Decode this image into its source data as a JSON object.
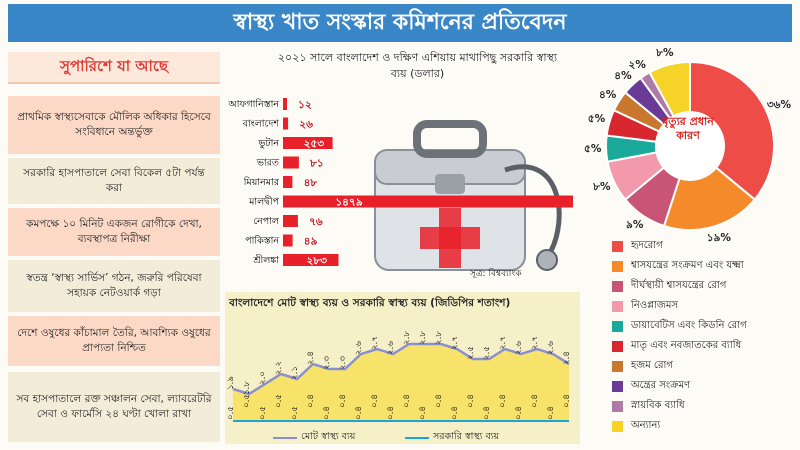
{
  "header": {
    "title": "স্বাস্থ্য খাত সংস্কার কমিশনের প্রতিবেদন"
  },
  "recommendations": {
    "title": "সুপারিশে যা আছে",
    "items": [
      "প্রাথমিক স্বাস্থ্যসেবাকে মৌলিক অধিকার হিসেবে সংবিধানে অন্তর্ভুক্ত",
      "সরকারি হাসপাতালে সেবা বিকেল ৫টা পর্যন্ত করা",
      "কমপক্ষে ১০ মিনিট একজন রোগীকে দেখা, ব্যবস্থাপত্র নিরীক্ষা",
      "স্বতন্ত্র ‘স্বাস্থ্য সার্ভিস’ গঠন, জরুরি পরিষেবা সহায়ক নেটওয়ার্ক গড়া",
      "দেশে ওষুধের কাঁচামাল তৈরি, আবশ্যিক ওষুধের প্রাপ্যতা নিশ্চিত",
      "সব হাসপাতালে রক্ত সঞ্চালন সেবা, ল্যাবরেটরি সেবা ও ফার্মেসি ২৪ ঘণ্টা খোলা রাখা"
    ]
  },
  "chart_data": [
    {
      "type": "bar",
      "title": "২০২১ সালে বাংলাদেশ ও দক্ষিণ এশিয়ায় মাথাপিছু সরকারি স্বাস্থ্য ব্যয় (ডলার)",
      "source": "সূত্র: বিশ্বব্যাংক",
      "categories": [
        "আফগানিস্তান",
        "বাংলাদেশ",
        "ভুটান",
        "ভারত",
        "মিয়ানমার",
        "মালদ্বীপ",
        "নেপাল",
        "পাকিস্তান",
        "শ্রীলঙ্কা"
      ],
      "values": [
        12,
        26,
        253,
        81,
        48,
        1479,
        76,
        49,
        283
      ],
      "value_labels": [
        "১২",
        "২৬",
        "২৫৩",
        "৮১",
        "৪৮",
        "১৪৭৯",
        "৭৬",
        "৪৯",
        "২৮৩"
      ],
      "color": "#e8202a"
    },
    {
      "type": "line",
      "title": "বাংলাদেশে মোট স্বাস্থ্য ব্যয় ও সরকারি স্বাস্থ্য ব্যয় (জিডিপির শতাংশ)",
      "x": [
        2000,
        2001,
        2002,
        2003,
        2004,
        2005,
        2006,
        2007,
        2008,
        2009,
        2010,
        2011,
        2012,
        2013,
        2014,
        2015,
        2016,
        2017,
        2018,
        2019,
        2020,
        2021
      ],
      "series": [
        {
          "name": "মোট স্বাস্থ্য ব্যয়",
          "color": "#8a8fd0",
          "values": [
            1.9,
            1.8,
            2.0,
            2.2,
            2.1,
            2.4,
            2.3,
            2.3,
            2.6,
            2.7,
            2.6,
            2.8,
            2.8,
            2.8,
            2.7,
            2.5,
            2.5,
            2.7,
            2.6,
            2.7,
            2.6,
            2.4
          ],
          "labels": [
            "১.৯",
            "১.৮",
            "২.০",
            "২.২",
            "২.১",
            "২.৪",
            "২.৩",
            "২.৩",
            "২.৬",
            "২.৭",
            "২.৬",
            "২.৮",
            "২.৮",
            "২.৮",
            "২.৭",
            "২.৫",
            "২.৫",
            "২.৭",
            "২.৬",
            "২.৭",
            "২.৬",
            "২.৪"
          ]
        },
        {
          "name": "সরকারি স্বাস্থ্য ব্যয়",
          "color": "#1aa6d8",
          "values": [
            0.5,
            0.5,
            0.5,
            0.5,
            0.5,
            0.4,
            0.4,
            0.4,
            0.4,
            0.4,
            0.4,
            0.4,
            0.4,
            0.4,
            0.4,
            0.4,
            0.4,
            0.4,
            0.4,
            0.4,
            0.4,
            0.4
          ],
          "labels": [
            "০.৫",
            "০.৫",
            "০.৫",
            "০.৫",
            "০.৫",
            "০.৪",
            "০.৪",
            "০.৪",
            "০.৪",
            "০.৪",
            "০.৪",
            "০.৪",
            "০.৪",
            "০.৪",
            "০.৪",
            "০.৪",
            "০.৪",
            "০.৪",
            "০.৪",
            "০.৪",
            "০.৪",
            "০.৪"
          ]
        }
      ]
    },
    {
      "type": "pie",
      "center_label": "মৃত্যুর প্রধান কারণ",
      "slices": [
        {
          "name": "হৃদরোগ",
          "value": 36,
          "label": "৩৬%",
          "color": "#ee4d47"
        },
        {
          "name": "শ্বাসযন্ত্রের সংক্রমণ এবং যক্ষ্মা",
          "value": 19,
          "label": "১৯%",
          "color": "#f58a2a"
        },
        {
          "name": "দীর্ঘস্থায়ী শ্বাসযন্ত্রের রোগ",
          "value": 9,
          "label": "৯%",
          "color": "#c85476"
        },
        {
          "name": "নিওপ্লাজমস",
          "value": 8,
          "label": "৮%",
          "color": "#f29aac"
        },
        {
          "name": "ডায়াবেটিস এবং কিডনি রোগ",
          "value": 5,
          "label": "৫%",
          "color": "#1aa99a"
        },
        {
          "name": "মাতৃ এবং নবজাতকের ব্যাধি",
          "value": 5,
          "label": "৫%",
          "color": "#d8272e"
        },
        {
          "name": "হজম রোগ",
          "value": 4,
          "label": "৪%",
          "color": "#c9762e"
        },
        {
          "name": "অন্ত্রের সংক্রমণ",
          "value": 4,
          "label": "৪%",
          "color": "#6a3b96"
        },
        {
          "name": "স্নায়বিক ব্যাধি",
          "value": 2,
          "label": "২%",
          "color": "#b07aa8"
        },
        {
          "name": "অন্যান্য",
          "value": 8,
          "label": "৮%",
          "color": "#f5d328"
        }
      ]
    }
  ]
}
